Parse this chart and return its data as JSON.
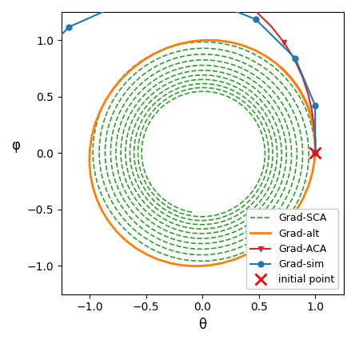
{
  "xlabel": "θ",
  "ylabel": "φ",
  "xlim": [
    -1.25,
    1.25
  ],
  "ylim": [
    -1.25,
    1.25
  ],
  "initial_point": [
    1.0,
    0.0
  ],
  "colors": {
    "sim": "#1f77b4",
    "alt": "#ff7f0e",
    "sca": "#2ca02c",
    "aca": "#d62728"
  },
  "legend_labels": [
    "Grad-sim",
    "Grad-alt",
    "Grad-SCA",
    "Grad-ACA",
    "initial point"
  ],
  "xticks": [
    -1.0,
    -0.5,
    0.0,
    0.5,
    1.0
  ],
  "yticks": [
    -1.0,
    -0.5,
    0.0,
    0.5,
    1.0
  ],
  "figsize": [
    4.54,
    4.3
  ],
  "dpi": 100
}
